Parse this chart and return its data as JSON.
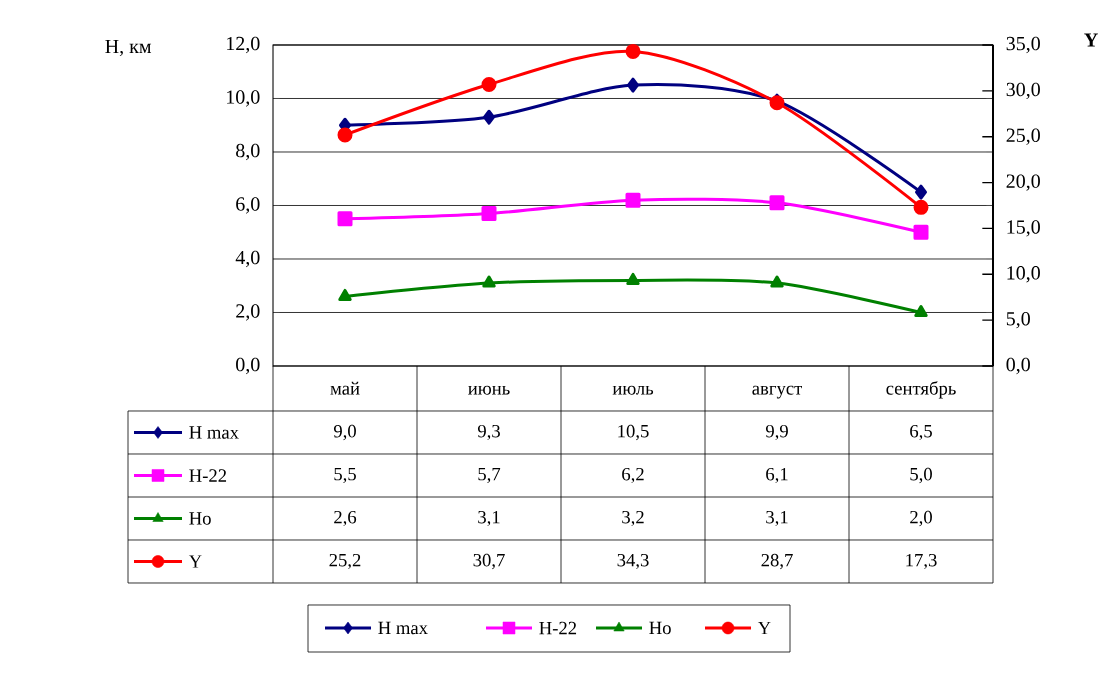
{
  "chart_data": {
    "type": "line",
    "ylabel": "H, км",
    "y2label": "Y",
    "categories": [
      "май",
      "июнь",
      "июль",
      "август",
      "сентябрь"
    ],
    "ylim": [
      0,
      12
    ],
    "yticks": [
      {
        "value": 0,
        "label": "0,0"
      },
      {
        "value": 2,
        "label": "2,0"
      },
      {
        "value": 4,
        "label": "4,0"
      },
      {
        "value": 6,
        "label": "6,0"
      },
      {
        "value": 8,
        "label": "8,0"
      },
      {
        "value": 10,
        "label": "10,0"
      },
      {
        "value": 12,
        "label": "12,0"
      }
    ],
    "y2lim": [
      0,
      35
    ],
    "y2ticks": [
      {
        "value": 0,
        "label": "0,0"
      },
      {
        "value": 5,
        "label": "5,0"
      },
      {
        "value": 10,
        "label": "10,0"
      },
      {
        "value": 15,
        "label": "15,0"
      },
      {
        "value": 20,
        "label": "20,0"
      },
      {
        "value": 25,
        "label": "25,0"
      },
      {
        "value": 30,
        "label": "30,0"
      },
      {
        "value": 35,
        "label": "35,0"
      }
    ],
    "grid": "y",
    "legend": "bottom",
    "line_style": "solid",
    "series": [
      {
        "name": "H max",
        "color": "#000080",
        "marker": "diamond",
        "values": [
          9.0,
          9.3,
          10.5,
          9.9,
          6.5
        ],
        "value_labels": [
          "9,0",
          "9,3",
          "10,5",
          "9,9",
          "6,5"
        ]
      },
      {
        "name": "H-22",
        "color": "#ff00ff",
        "marker": "square",
        "values": [
          5.5,
          5.7,
          6.2,
          6.1,
          5.0
        ],
        "value_labels": [
          "5,5",
          "5,7",
          "6,2",
          "6,1",
          "5,0"
        ]
      },
      {
        "name": "Ho",
        "color": "#008000",
        "marker": "triangle",
        "values": [
          2.6,
          3.1,
          3.2,
          3.1,
          2.0
        ],
        "value_labels": [
          "2,6",
          "3,1",
          "3,2",
          "3,1",
          "2,0"
        ]
      },
      {
        "name": "Y",
        "color": "#ff0000",
        "marker": "circle",
        "axis": "y2",
        "values": [
          25.2,
          30.7,
          34.3,
          28.7,
          17.3
        ],
        "value_labels": [
          "25,2",
          "30,7",
          "34,3",
          "28,7",
          "17,3"
        ]
      }
    ]
  }
}
